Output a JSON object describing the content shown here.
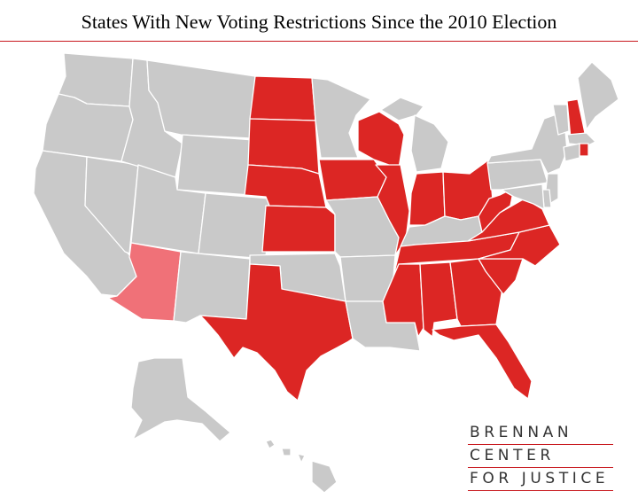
{
  "title": "States With New Voting Restrictions Since the 2010 Election",
  "legend_colors": {
    "restricted": "#dc2624",
    "arizona": "#f07178",
    "unrestricted": "#c9c9c9",
    "border": "#ffffff",
    "accent_rule": "#c8191f"
  },
  "states": [
    {
      "name": "Washington",
      "status": "unrestricted"
    },
    {
      "name": "Oregon",
      "status": "unrestricted"
    },
    {
      "name": "California",
      "status": "unrestricted"
    },
    {
      "name": "Nevada",
      "status": "unrestricted"
    },
    {
      "name": "Idaho",
      "status": "unrestricted"
    },
    {
      "name": "Montana",
      "status": "unrestricted"
    },
    {
      "name": "Wyoming",
      "status": "unrestricted"
    },
    {
      "name": "Utah",
      "status": "unrestricted"
    },
    {
      "name": "Colorado",
      "status": "unrestricted"
    },
    {
      "name": "Arizona",
      "status": "arizona"
    },
    {
      "name": "New Mexico",
      "status": "unrestricted"
    },
    {
      "name": "North Dakota",
      "status": "restricted"
    },
    {
      "name": "South Dakota",
      "status": "restricted"
    },
    {
      "name": "Nebraska",
      "status": "restricted"
    },
    {
      "name": "Kansas",
      "status": "restricted"
    },
    {
      "name": "Oklahoma",
      "status": "unrestricted"
    },
    {
      "name": "Texas",
      "status": "restricted"
    },
    {
      "name": "Minnesota",
      "status": "unrestricted"
    },
    {
      "name": "Iowa",
      "status": "restricted"
    },
    {
      "name": "Missouri",
      "status": "unrestricted"
    },
    {
      "name": "Arkansas",
      "status": "unrestricted"
    },
    {
      "name": "Louisiana",
      "status": "unrestricted"
    },
    {
      "name": "Wisconsin",
      "status": "restricted"
    },
    {
      "name": "Illinois",
      "status": "restricted"
    },
    {
      "name": "Michigan",
      "status": "unrestricted"
    },
    {
      "name": "Indiana",
      "status": "restricted"
    },
    {
      "name": "Ohio",
      "status": "restricted"
    },
    {
      "name": "Kentucky",
      "status": "unrestricted"
    },
    {
      "name": "Tennessee",
      "status": "restricted"
    },
    {
      "name": "Mississippi",
      "status": "restricted"
    },
    {
      "name": "Alabama",
      "status": "restricted"
    },
    {
      "name": "Georgia",
      "status": "restricted"
    },
    {
      "name": "Florida",
      "status": "restricted"
    },
    {
      "name": "South Carolina",
      "status": "restricted"
    },
    {
      "name": "North Carolina",
      "status": "restricted"
    },
    {
      "name": "Virginia",
      "status": "restricted"
    },
    {
      "name": "West Virginia",
      "status": "restricted"
    },
    {
      "name": "Pennsylvania",
      "status": "unrestricted"
    },
    {
      "name": "New York",
      "status": "unrestricted"
    },
    {
      "name": "Vermont",
      "status": "unrestricted"
    },
    {
      "name": "New Hampshire",
      "status": "restricted"
    },
    {
      "name": "Maine",
      "status": "unrestricted"
    },
    {
      "name": "Massachusetts",
      "status": "unrestricted"
    },
    {
      "name": "Rhode Island",
      "status": "restricted"
    },
    {
      "name": "Connecticut",
      "status": "unrestricted"
    },
    {
      "name": "New Jersey",
      "status": "unrestricted"
    },
    {
      "name": "Delaware",
      "status": "unrestricted"
    },
    {
      "name": "Maryland",
      "status": "unrestricted"
    },
    {
      "name": "Alaska",
      "status": "unrestricted"
    },
    {
      "name": "Hawaii",
      "status": "unrestricted"
    }
  ],
  "logo": {
    "line1": "BRENNAN",
    "line2": "CENTER",
    "line3": "FOR JUSTICE"
  }
}
